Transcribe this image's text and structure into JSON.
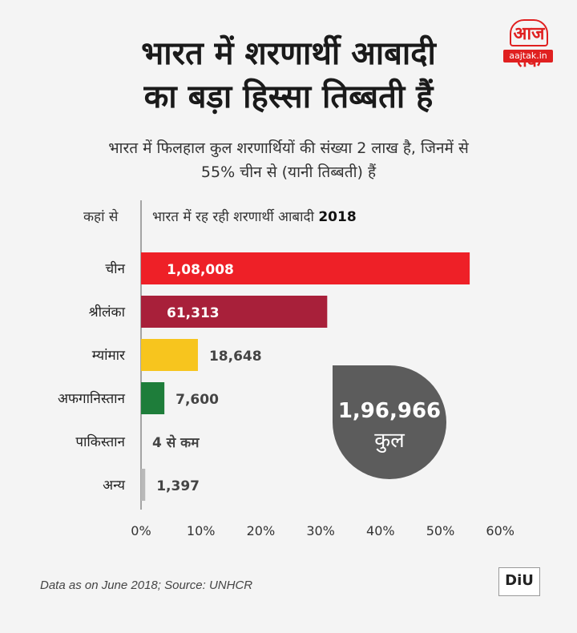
{
  "title": {
    "line1": "भारत में शरणार्थी आबादी",
    "line2": "का बड़ा हिस्सा तिब्बती हैं"
  },
  "logo": {
    "mark": "आज तक",
    "site": "aajtak.in"
  },
  "subtitle": {
    "line1": "भारत में फिलहाल कुल शरणार्थियों की संख्या 2 लाख है, जिनमें से",
    "line2": "55% चीन से (यानी तिब्बती) हैं"
  },
  "header": {
    "left": "कहां से",
    "right": "भारत में रह रही शरणार्थी आबादी",
    "right_year": "2018"
  },
  "total": {
    "value": "1,96,966",
    "label": "कुल"
  },
  "source": "Data as on June 2018; Source: UNHCR",
  "badge": "DIU",
  "chart_data": {
    "type": "bar",
    "orientation": "horizontal",
    "xlim": [
      0,
      60
    ],
    "xticks": [
      "0%",
      "10%",
      "20%",
      "30%",
      "40%",
      "50%",
      "60%"
    ],
    "grid": false,
    "categories": [
      "चीन",
      "श्रीलंका",
      "म्यांमार",
      "अफगानिस्तान",
      "पाकिस्तान",
      "अन्य"
    ],
    "values": [
      54.9,
      31.1,
      9.5,
      3.9,
      0.0,
      0.7
    ],
    "data_labels": [
      "1,08,008",
      "61,313",
      "18,648",
      "7,600",
      "4 से कम",
      "1,397"
    ],
    "colors": [
      "#ee2027",
      "#a8203a",
      "#f7c51e",
      "#1e7d3a",
      "#cccccc",
      "#b9b9b9"
    ],
    "label_inside": [
      true,
      true,
      false,
      false,
      false,
      false
    ]
  }
}
